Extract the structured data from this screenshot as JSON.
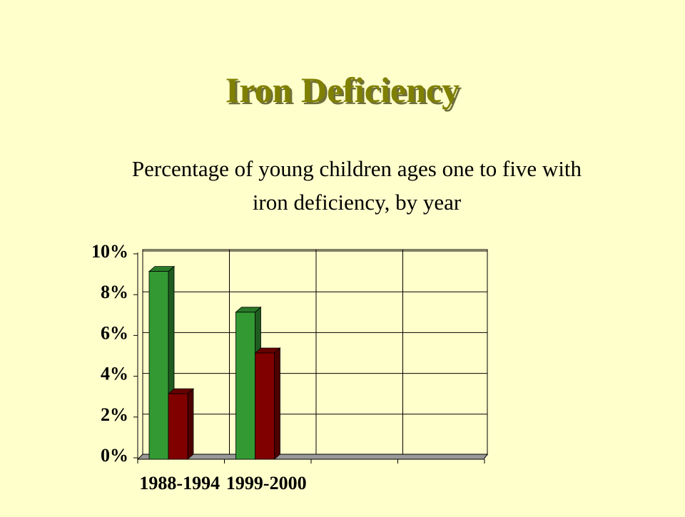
{
  "slide_title": "Iron Deficiency",
  "chart_data": {
    "type": "bar",
    "title": [
      "Percentage of young children ages one to five with",
      "iron deficiency, by year"
    ],
    "categories": [
      "1988-1994",
      "1999-2000",
      null,
      null
    ],
    "series": [
      {
        "color": "#339933",
        "values": [
          9,
          7,
          null,
          null
        ]
      },
      {
        "color": "#800000",
        "values": [
          3,
          5,
          null,
          null
        ]
      }
    ],
    "ylim": [
      0,
      10
    ],
    "yticks": [
      {
        "value": 0,
        "label": "0%"
      },
      {
        "value": 2,
        "label": "2%"
      },
      {
        "value": 4,
        "label": "4%"
      },
      {
        "value": 6,
        "label": "6%"
      },
      {
        "value": 8,
        "label": "8%"
      },
      {
        "value": 10,
        "label": "10%"
      }
    ],
    "grid": true
  }
}
